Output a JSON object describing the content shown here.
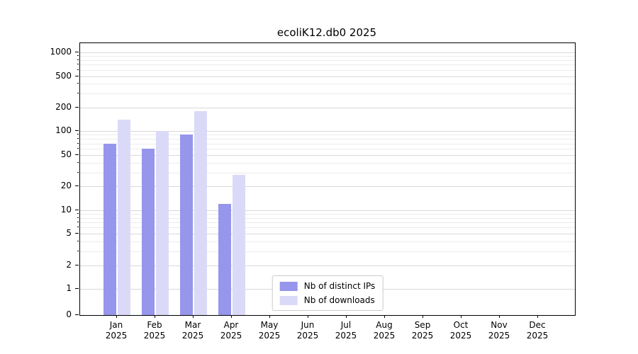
{
  "chart_data": {
    "type": "bar",
    "title": "ecoliK12.db0 2025",
    "categories": [
      "Jan 2025",
      "Feb 2025",
      "Mar 2025",
      "Apr 2025",
      "May 2025",
      "Jun 2025",
      "Jul 2025",
      "Aug 2025",
      "Sep 2025",
      "Oct 2025",
      "Nov 2025",
      "Dec 2025"
    ],
    "series": [
      {
        "name": "Nb of distinct IPs",
        "color": "#9696ec",
        "values": [
          70,
          60,
          90,
          12,
          0,
          0,
          0,
          0,
          0,
          0,
          0,
          0
        ]
      },
      {
        "name": "Nb of downloads",
        "color": "#dadaf8",
        "values": [
          140,
          100,
          180,
          28,
          0,
          0,
          0,
          0,
          0,
          0,
          0,
          0
        ]
      }
    ],
    "yticks": [
      0,
      1,
      2,
      5,
      10,
      20,
      50,
      100,
      200,
      500,
      1000
    ],
    "yticks_minor": [
      3,
      4,
      6,
      7,
      8,
      9,
      30,
      40,
      60,
      70,
      80,
      90,
      300,
      400,
      600,
      700,
      800,
      900
    ],
    "scale": "symlog",
    "ylim": [
      0,
      1300
    ],
    "xlabel": "",
    "ylabel": "",
    "grid": true,
    "legend_position": "lower center"
  }
}
